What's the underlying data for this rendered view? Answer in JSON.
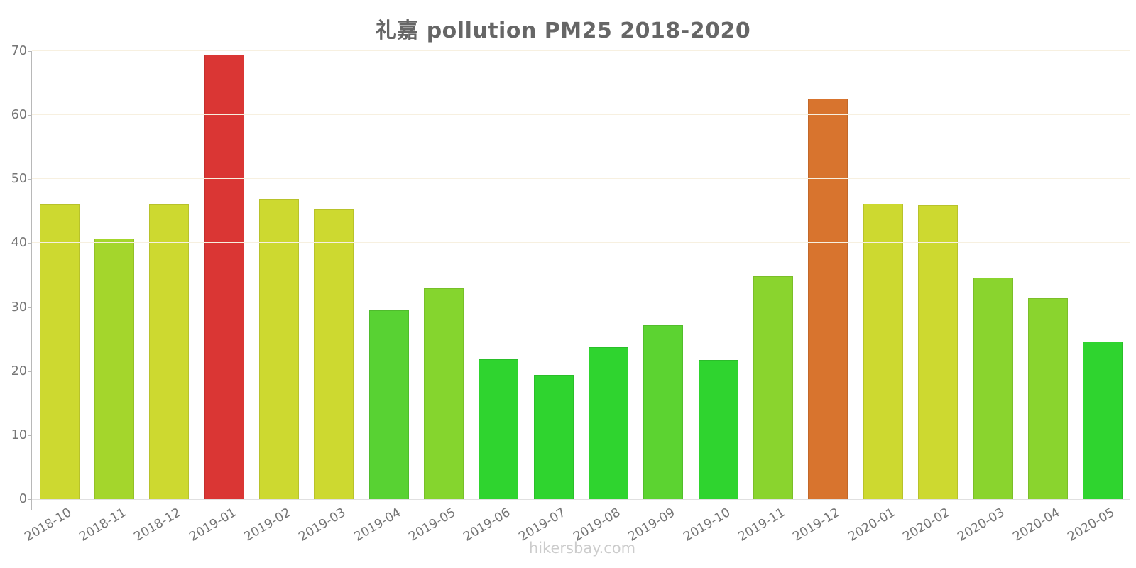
{
  "title": "礼嘉 pollution PM25 2018-2020",
  "watermark": "hikersbay.com",
  "chart_data": {
    "type": "bar",
    "title": "礼嘉 pollution PM25 2018-2020",
    "xlabel": "",
    "ylabel": "",
    "ylim": [
      0,
      70
    ],
    "yticks": [
      0,
      10,
      20,
      30,
      40,
      50,
      60,
      70
    ],
    "grid": "horizontal",
    "legend": "none",
    "categories": [
      "2018-10",
      "2018-11",
      "2018-12",
      "2019-01",
      "2019-02",
      "2019-03",
      "2019-04",
      "2019-05",
      "2019-06",
      "2019-07",
      "2019-08",
      "2019-09",
      "2019-10",
      "2019-11",
      "2019-12",
      "2020-01",
      "2020-02",
      "2020-03",
      "2020-04",
      "2020-05"
    ],
    "values": [
      46.0,
      40.7,
      46.0,
      69.5,
      46.9,
      45.3,
      29.5,
      33.0,
      21.9,
      19.4,
      23.7,
      27.2,
      21.8,
      34.8,
      62.6,
      46.1,
      45.9,
      34.6,
      31.4,
      24.6
    ],
    "bar_colors": [
      "#cdd930",
      "#a4d62c",
      "#cdd930",
      "#da3634",
      "#cdd930",
      "#cdd930",
      "#58d233",
      "#85d52e",
      "#2fd42f",
      "#2fd42f",
      "#2fd42f",
      "#5cd331",
      "#2fd42f",
      "#8ad42e",
      "#d8742e",
      "#cdd930",
      "#cdd930",
      "#8ad42e",
      "#8ad42e",
      "#2fd42f"
    ],
    "colors": {
      "gridline": "#f7f0e0",
      "baseline": "#e0e0e0",
      "axis_line": "#b8b8b8",
      "tick_label": "#757575",
      "title": "#666666",
      "watermark": "#cccccc"
    }
  }
}
